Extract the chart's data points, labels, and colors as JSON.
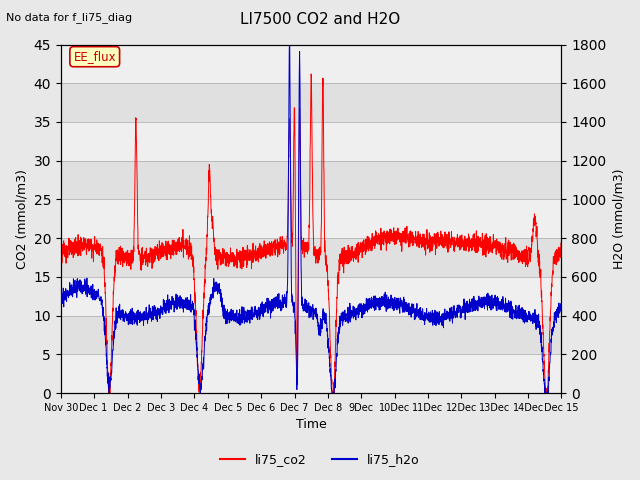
{
  "title": "LI7500 CO2 and H2O",
  "subtitle": "No data for f_li75_diag",
  "xlabel": "Time",
  "ylabel_left": "CO2 (mmol/m3)",
  "ylabel_right": "H2O (mmol/m3)",
  "ylim_left": [
    0,
    45
  ],
  "ylim_right": [
    0,
    1800
  ],
  "yticks_left": [
    0,
    5,
    10,
    15,
    20,
    25,
    30,
    35,
    40,
    45
  ],
  "yticks_right": [
    0,
    200,
    400,
    600,
    800,
    1000,
    1200,
    1400,
    1600,
    1800
  ],
  "co2_color": "#ff0000",
  "h2o_color": "#0000cc",
  "legend_label_co2": "li75_co2",
  "legend_label_h2o": "li75_h2o",
  "annotation_box": "EE_flux",
  "bg_color": "#e8e8e8",
  "plot_bg_color": "#e0e0e0",
  "n_points": 3000,
  "xtick_labels": [
    "Nov 30",
    "Dec 1 ",
    "Dec 2",
    "Dec 3",
    "Dec 4",
    "Dec 5",
    "Dec 6",
    "Dec 7",
    "Dec 8",
    "9Dec",
    "10Dec",
    "11Dec",
    "12Dec",
    "13Dec",
    "14Dec",
    "Dec 15"
  ],
  "figsize": [
    6.4,
    4.8
  ],
  "dpi": 100
}
